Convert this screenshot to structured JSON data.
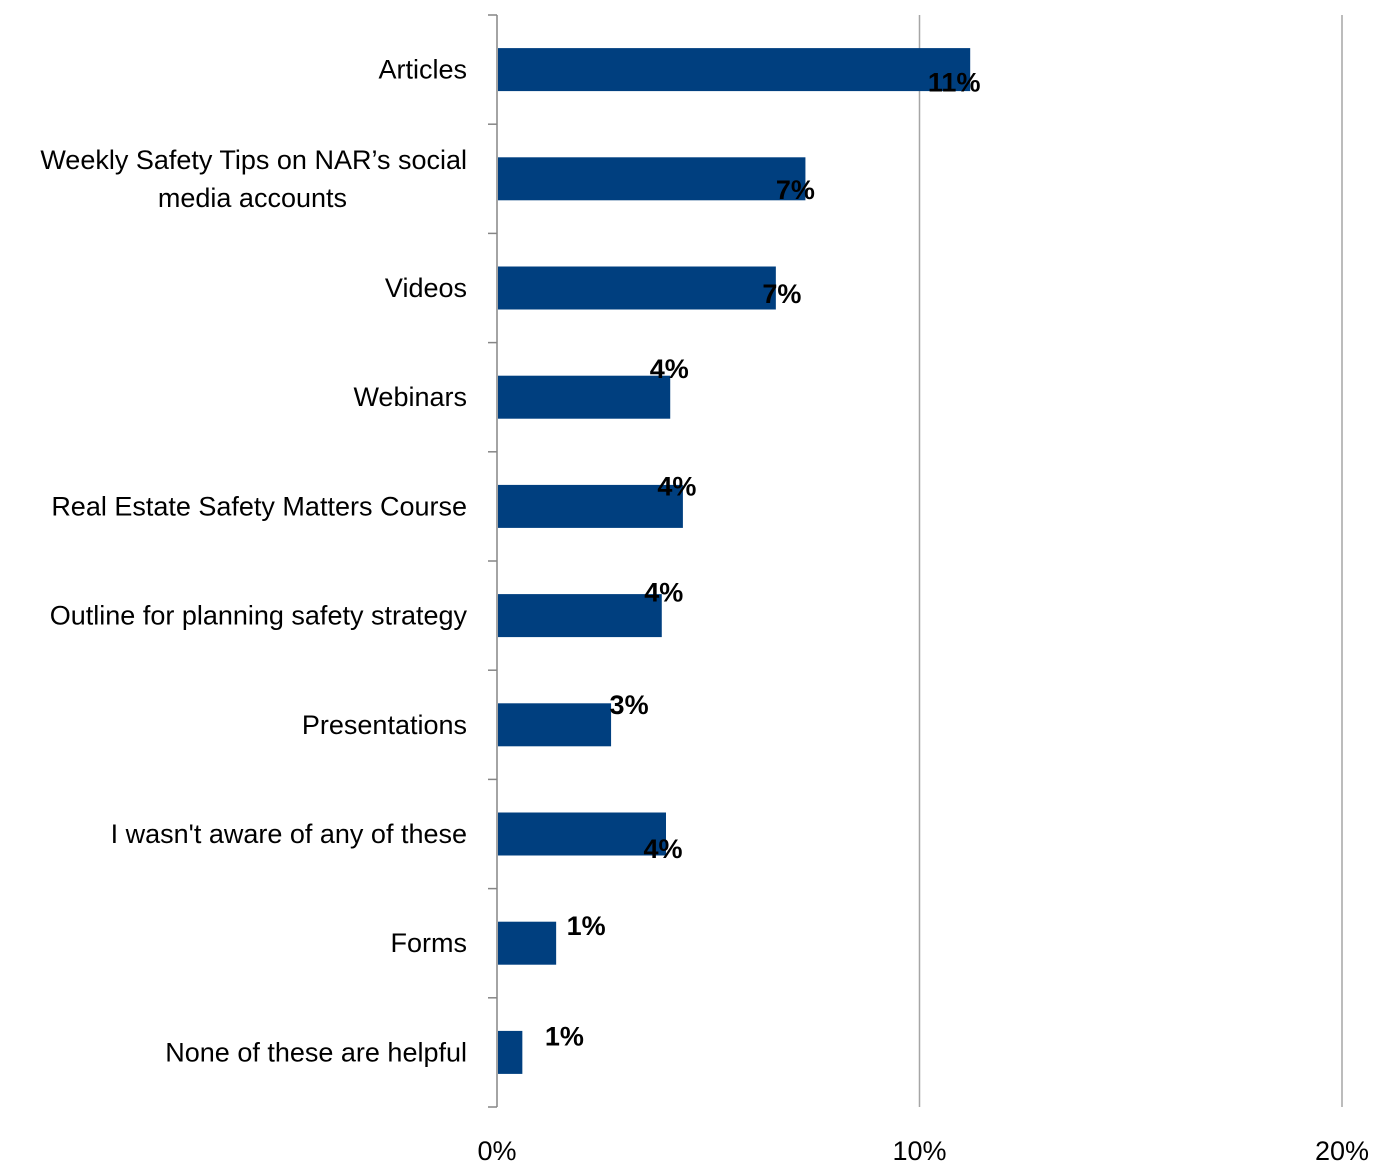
{
  "chart_data": {
    "type": "bar",
    "orientation": "horizontal",
    "categories": [
      "Articles",
      "Weekly Safety Tips on NAR’s social media accounts",
      "Videos",
      "Webinars",
      "Real Estate Safety Matters Course",
      "Outline for planning safety strategy",
      "Presentations",
      "I wasn't aware of any of these",
      "Forms",
      "None of these are helpful"
    ],
    "values": [
      11.2,
      7.3,
      6.6,
      4.1,
      4.4,
      3.9,
      2.7,
      4.0,
      1.4,
      0.6
    ],
    "data_labels": [
      "11%",
      "7%",
      "7%",
      "4%",
      "4%",
      "4%",
      "3%",
      "4%",
      "1%",
      "1%"
    ],
    "xlim": [
      0,
      20
    ],
    "xticks": [
      0,
      10,
      20
    ],
    "xtick_labels": [
      "0%",
      "10%",
      "20%"
    ],
    "grid": "vertical major gridlines",
    "bar_color": "#003F7F",
    "gridline_color": "#A6A6A6",
    "title": "",
    "xlabel": "",
    "ylabel": ""
  }
}
